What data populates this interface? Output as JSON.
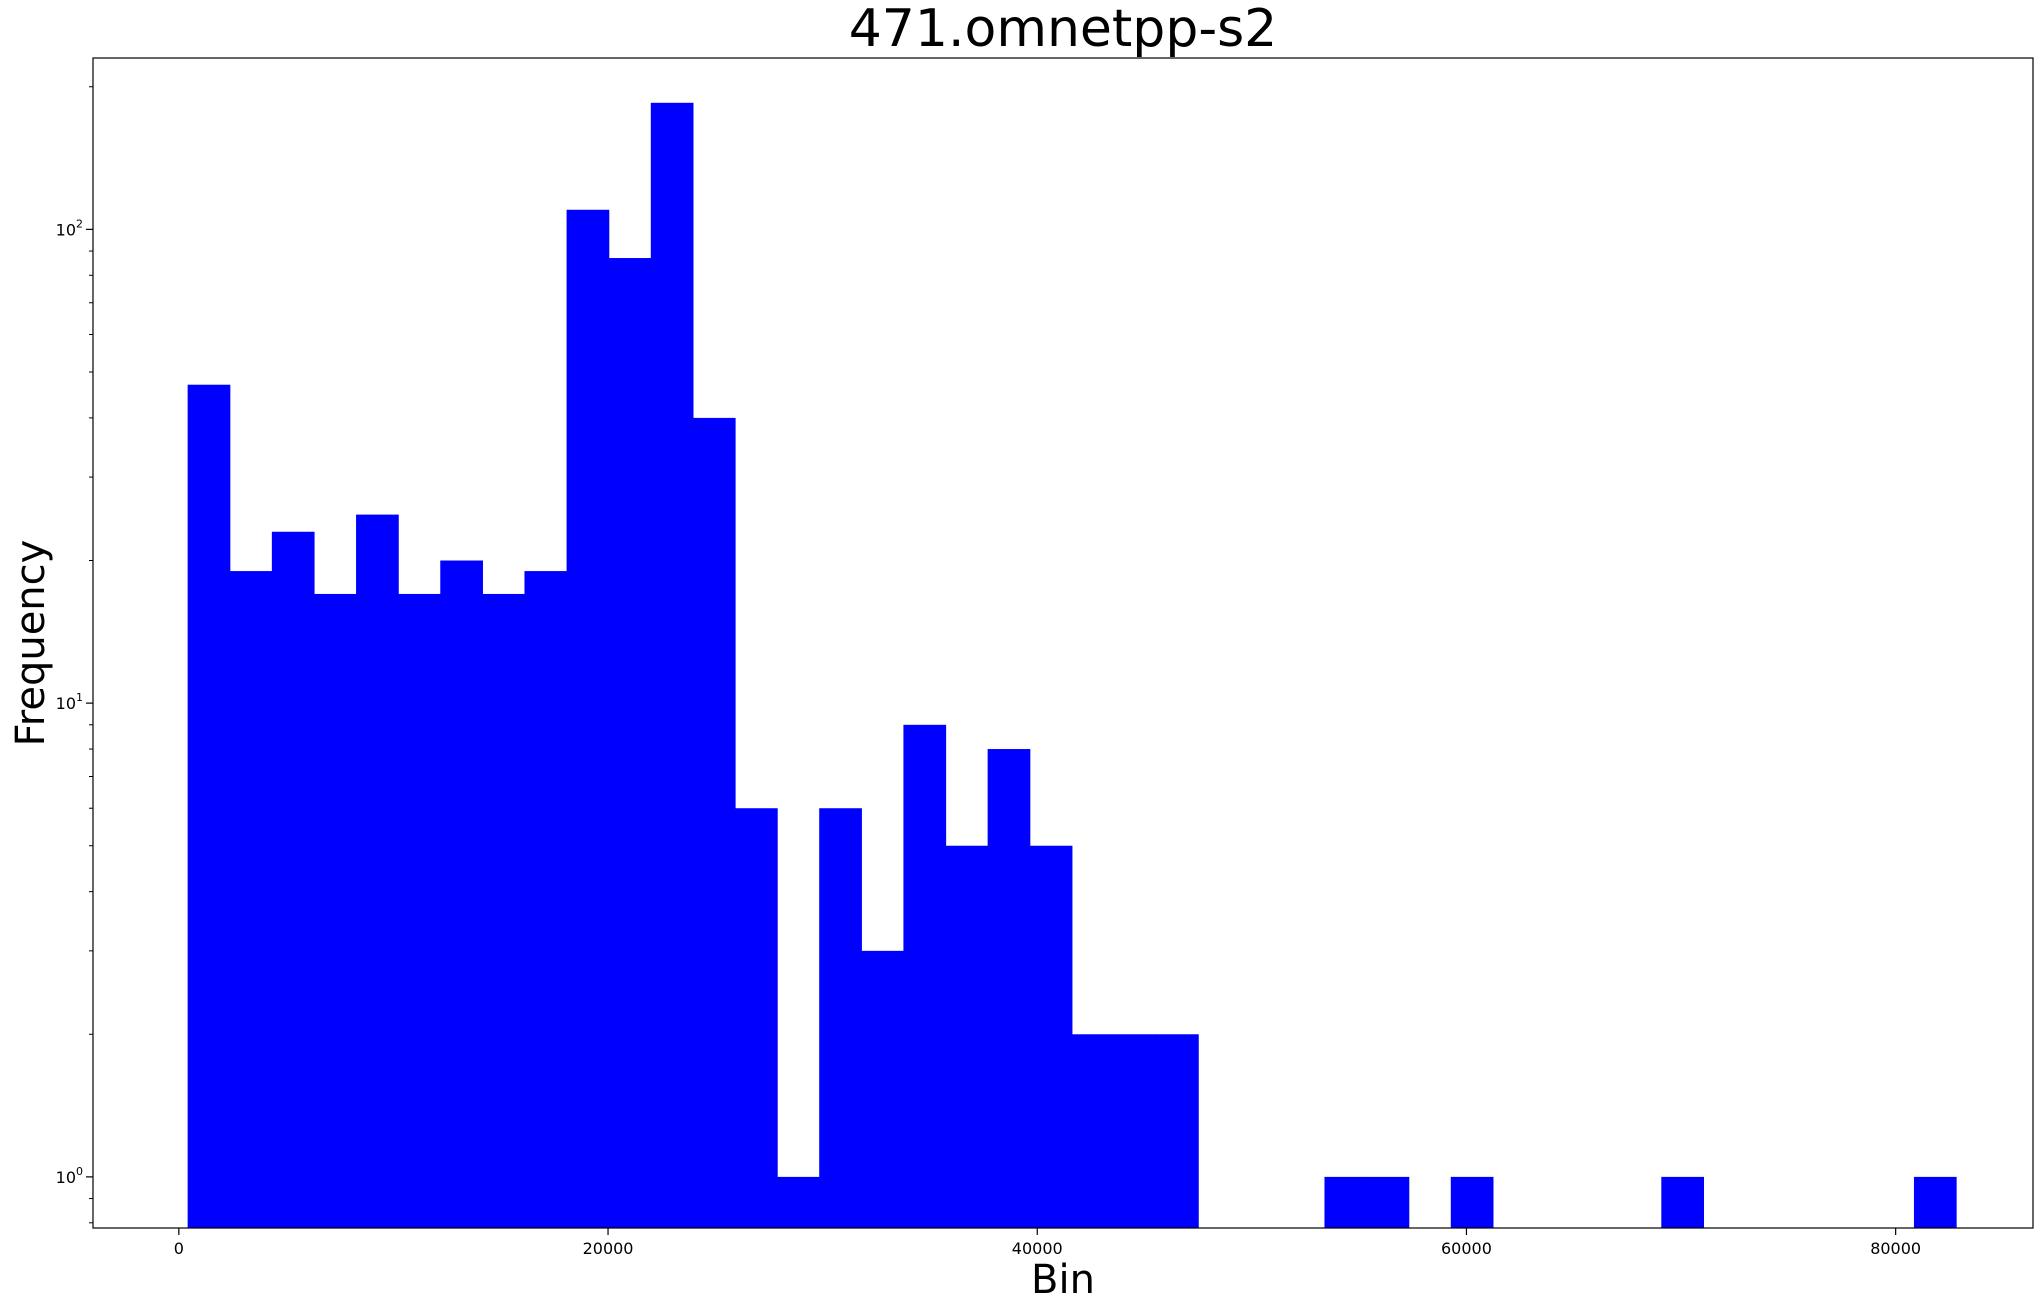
{
  "chart_data": {
    "type": "bar",
    "title": "471.omnetpp-s2",
    "xlabel": "Bin",
    "ylabel": "Frequency",
    "yscale": "log",
    "xlim": [
      -4000,
      86400
    ],
    "ylim": [
      0.78,
      230
    ],
    "grid": false,
    "bar_color": "#0000ff",
    "bin_width": 1962,
    "bins": [
      {
        "x0": 410,
        "count": 47
      },
      {
        "x0": 2372,
        "count": 19
      },
      {
        "x0": 4334,
        "count": 23
      },
      {
        "x0": 6296,
        "count": 17
      },
      {
        "x0": 8258,
        "count": 25
      },
      {
        "x0": 10220,
        "count": 17
      },
      {
        "x0": 12182,
        "count": 20
      },
      {
        "x0": 14144,
        "count": 17
      },
      {
        "x0": 16106,
        "count": 19
      },
      {
        "x0": 18068,
        "count": 110
      },
      {
        "x0": 20030,
        "count": 87
      },
      {
        "x0": 21992,
        "count": 185
      },
      {
        "x0": 23954,
        "count": 40
      },
      {
        "x0": 25916,
        "count": 6
      },
      {
        "x0": 27878,
        "count": 1
      },
      {
        "x0": 29840,
        "count": 6
      },
      {
        "x0": 31802,
        "count": 3
      },
      {
        "x0": 33764,
        "count": 9
      },
      {
        "x0": 35726,
        "count": 5
      },
      {
        "x0": 37688,
        "count": 8
      },
      {
        "x0": 39650,
        "count": 5
      },
      {
        "x0": 41612,
        "count": 2
      },
      {
        "x0": 43574,
        "count": 2
      },
      {
        "x0": 45536,
        "count": 2
      },
      {
        "x0": 53384,
        "count": 1
      },
      {
        "x0": 55346,
        "count": 1
      },
      {
        "x0": 59270,
        "count": 1
      },
      {
        "x0": 69080,
        "count": 1
      },
      {
        "x0": 80852,
        "count": 1
      }
    ],
    "x_ticks": [
      {
        "value": 0,
        "label": "0"
      },
      {
        "value": 20000,
        "label": "20000"
      },
      {
        "value": 40000,
        "label": "40000"
      },
      {
        "value": 60000,
        "label": "60000"
      },
      {
        "value": 80000,
        "label": "80000"
      }
    ],
    "y_ticks": [
      {
        "value": 1,
        "base": "10",
        "exp": "0"
      },
      {
        "value": 10,
        "base": "10",
        "exp": "1"
      },
      {
        "value": 100,
        "base": "10",
        "exp": "2"
      }
    ]
  }
}
